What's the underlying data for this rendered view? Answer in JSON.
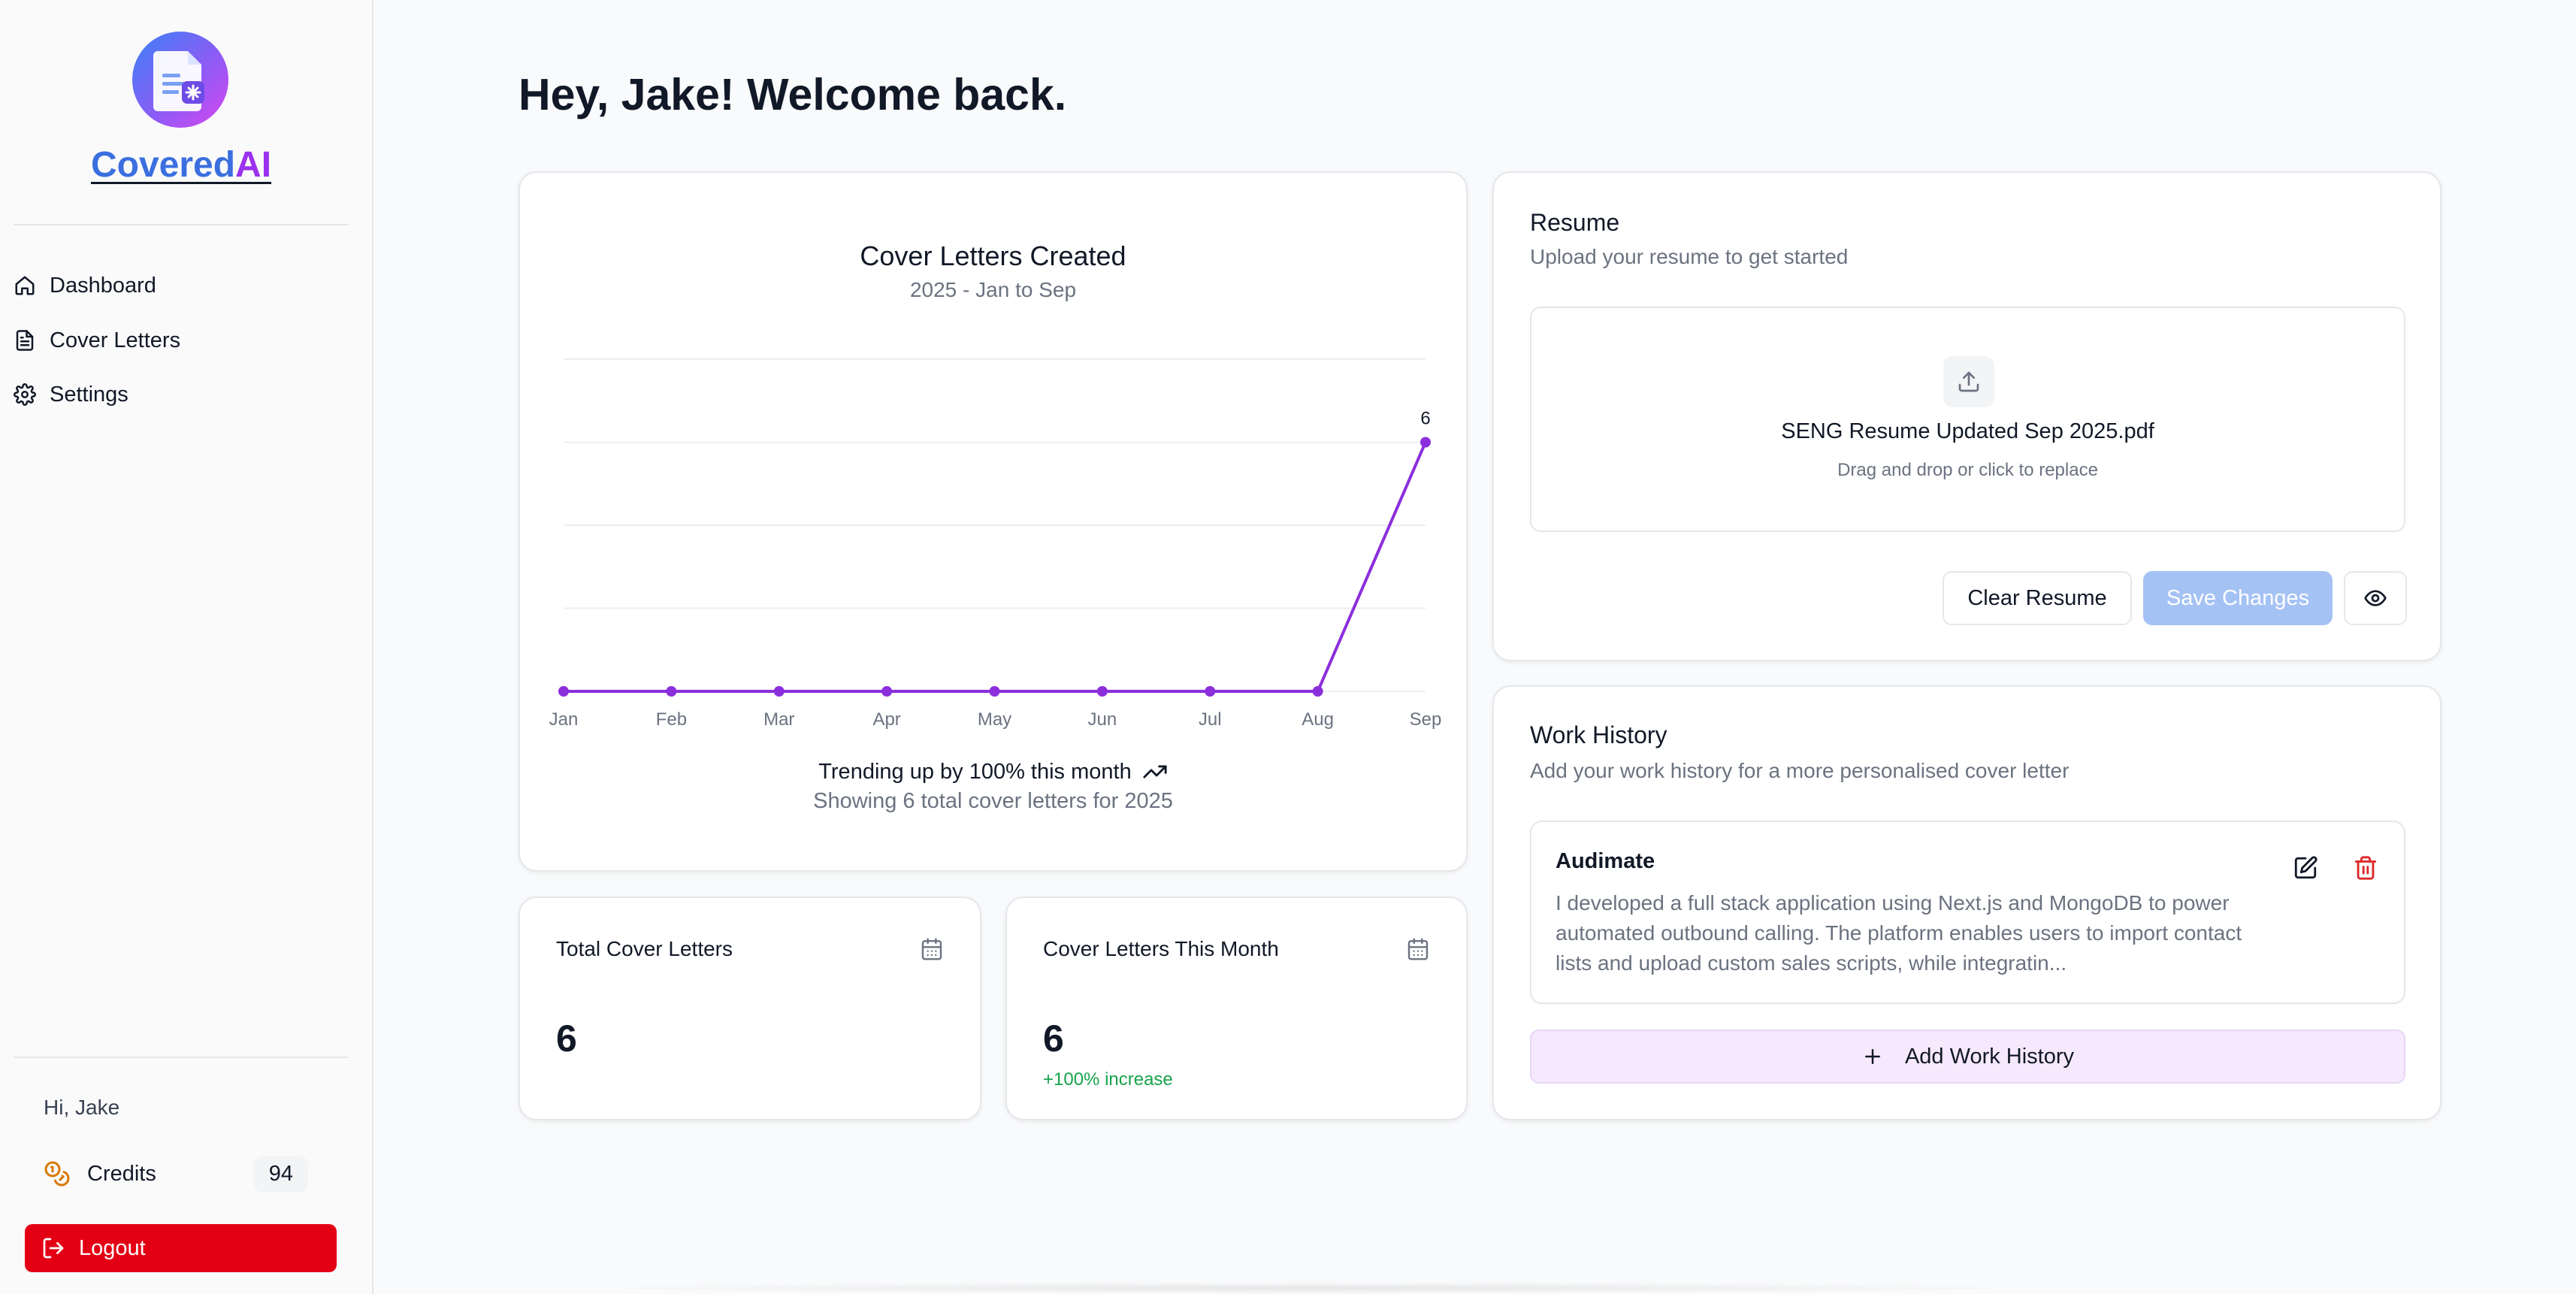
{
  "app": {
    "brand_part1": "Covered",
    "brand_part2": "AI",
    "brand_colors": {
      "part1": "#3b6fe0",
      "part2": "#9b30ee"
    }
  },
  "sidebar": {
    "items": [
      {
        "label": "Dashboard",
        "icon": "home-icon"
      },
      {
        "label": "Cover Letters",
        "icon": "file-text-icon"
      },
      {
        "label": "Settings",
        "icon": "gear-icon"
      }
    ],
    "greeting": "Hi, Jake",
    "credits_label": "Credits",
    "credits_icon": "coins-icon",
    "credits_value": "94",
    "logout_label": "Logout",
    "logout_icon": "logout-icon",
    "logout_color": "#e40014"
  },
  "main": {
    "greeting": "Hey, Jake! Welcome back."
  },
  "chart_card": {
    "title": "Cover Letters Created",
    "subtitle": "2025 - Jan to Sep",
    "trend_text": "Trending up by 100% this month",
    "trend_icon": "trending-up-icon",
    "footer_text": "Showing 6 total cover letters for 2025"
  },
  "chart_data": {
    "type": "line",
    "title": "Cover Letters Created",
    "subtitle": "2025 - Jan to Sep",
    "categories": [
      "Jan",
      "Feb",
      "Mar",
      "Apr",
      "May",
      "Jun",
      "Jul",
      "Aug",
      "Sep"
    ],
    "values": [
      0,
      0,
      0,
      0,
      0,
      0,
      0,
      0,
      6
    ],
    "data_labels": [
      null,
      null,
      null,
      null,
      null,
      null,
      null,
      null,
      "6"
    ],
    "ylim": [
      0,
      8
    ],
    "grid": true,
    "line_color": "#8b2fdc"
  },
  "stats": [
    {
      "label": "Total Cover Letters",
      "value": "6",
      "change": "",
      "icon": "calendar-icon"
    },
    {
      "label": "Cover Letters This Month",
      "value": "6",
      "change": "+100% increase",
      "icon": "calendar-icon"
    }
  ],
  "resume": {
    "title": "Resume",
    "subtitle": "Upload your resume to get started",
    "upload_icon": "upload-icon",
    "file_name": "SENG Resume Updated Sep 2025.pdf",
    "hint": "Drag and drop or click to replace",
    "clear_label": "Clear Resume",
    "save_label": "Save Changes",
    "preview_icon": "eye-icon"
  },
  "work_history": {
    "title": "Work History",
    "subtitle": "Add your work history for a more personalised cover letter",
    "items": [
      {
        "company": "Audimate",
        "description": "I developed a full stack application using Next.js and MongoDB to power automated outbound calling. The platform enables users to import contact lists and upload custom sales scripts, while integratin..."
      }
    ],
    "add_label": "Add Work History"
  }
}
